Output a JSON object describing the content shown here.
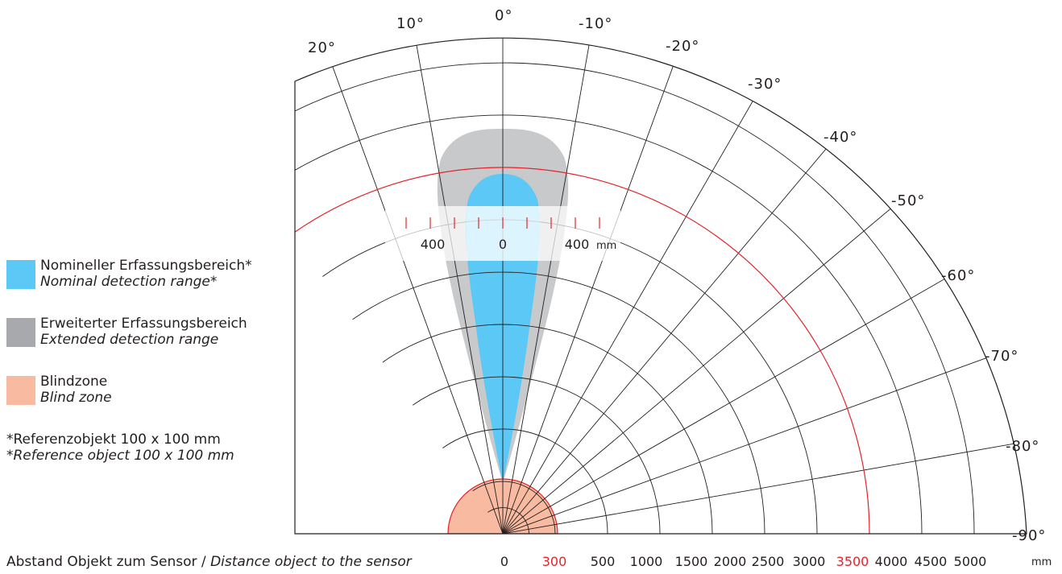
{
  "angle_labels": [
    "20°",
    "10°",
    "0°",
    "-10°",
    "-20°",
    "-30°",
    "-40°",
    "-50°",
    "-60°",
    "-70°",
    "-80°",
    "-90°"
  ],
  "legend": [
    {
      "de": "Nomineller Erfassungsbereich*",
      "en": "Nominal detection range*",
      "color": "#5bc8f5"
    },
    {
      "de": "Erweiterter Erfassungsbereich",
      "en": "Extended detection range",
      "color": "#a7a9ac"
    },
    {
      "de": "Blindzone",
      "en": "Blind zone",
      "color": "#f8bba1"
    }
  ],
  "footnote": {
    "de": "*Referenzobjekt 100 x 100 mm",
    "en": "*Reference object 100 x 100 mm"
  },
  "distance_label": {
    "de": "Abstand Objekt zum Sensor / ",
    "en": "Distance object to the sensor"
  },
  "distance_ticks": [
    {
      "value": "0",
      "color": "#231f20"
    },
    {
      "value": "300",
      "color": "#e3242b"
    },
    {
      "value": "500",
      "color": "#231f20"
    },
    {
      "value": "1000",
      "color": "#231f20"
    },
    {
      "value": "1500",
      "color": "#231f20"
    },
    {
      "value": "2000",
      "color": "#231f20"
    },
    {
      "value": "2500",
      "color": "#231f20"
    },
    {
      "value": "3000",
      "color": "#231f20"
    },
    {
      "value": "3500",
      "color": "#e3242b"
    },
    {
      "value": "4000",
      "color": "#231f20"
    },
    {
      "value": "4500",
      "color": "#231f20"
    },
    {
      "value": "5000",
      "color": "#231f20"
    }
  ],
  "distance_unit": "mm",
  "inset_scale": {
    "left": "400",
    "center": "0",
    "right": "400",
    "unit": "mm"
  },
  "highlight_color": "#e3242b"
}
